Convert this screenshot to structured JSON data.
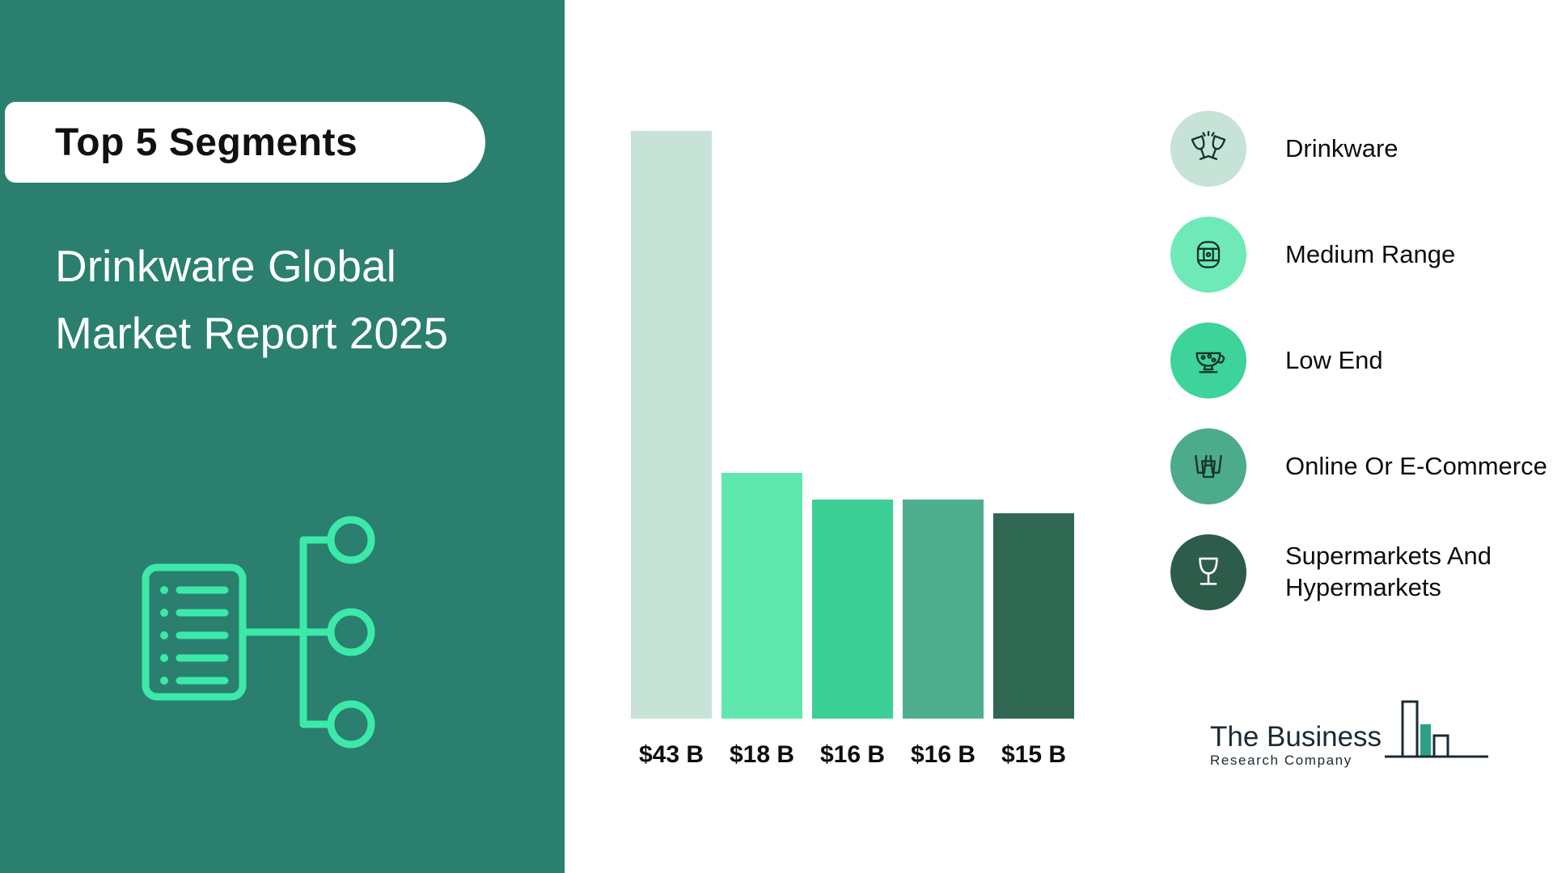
{
  "left_panel": {
    "badge": "Top 5 Segments",
    "title_line1": "Drinkware Global",
    "title_line2": "Market Report 2025"
  },
  "chart_data": {
    "type": "bar",
    "title": "Drinkware Global Market Report 2025 — Top 5 Segments",
    "unit": "USD billions",
    "categories": [
      "Drinkware",
      "Medium Range",
      "Low End",
      "Online Or E-Commerce",
      "Supermarkets And Hypermarkets"
    ],
    "values": [
      43,
      18,
      16,
      16,
      15
    ],
    "labels": [
      "$43 B",
      "$18 B",
      "$16 B",
      "$16 B",
      "$15 B"
    ],
    "bar_colors": [
      "#c7e2d6",
      "#60e7ae",
      "#3cd096",
      "#4fae8d",
      "#2e6852"
    ],
    "ylim": [
      0,
      43
    ],
    "grid": false,
    "legend_position": "right"
  },
  "legend": {
    "items": [
      {
        "label": "Drinkware",
        "color": "#c7e2d6",
        "icon": "toast-glasses-icon"
      },
      {
        "label": "Medium Range",
        "color": "#6fe9b8",
        "icon": "barrel-icon"
      },
      {
        "label": "Low End",
        "color": "#3ed39a",
        "icon": "teacup-icon"
      },
      {
        "label": "Online Or E-Commerce",
        "color": "#4cab8b",
        "icon": "glass-stack-icon"
      },
      {
        "label": "Supermarkets And Hypermarkets",
        "color": "#2e5c4a",
        "icon": "wine-glass-icon"
      }
    ]
  },
  "footer": {
    "brand_line1": "The Business",
    "brand_line2": "Research Company"
  },
  "colors": {
    "panel": "#2a7f6e",
    "accent_mint": "#3ce9a9",
    "text_dark": "#0d0d0d",
    "logo_navy": "#1b2a33",
    "logo_teal": "#2aa184"
  }
}
